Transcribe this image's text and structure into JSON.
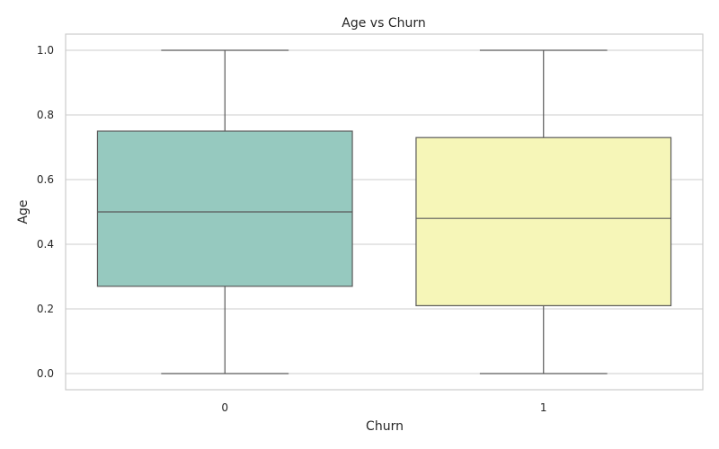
{
  "chart_data": {
    "type": "box",
    "title": "Age vs Churn",
    "xlabel": "Churn",
    "ylabel": "Age",
    "categories": [
      "0",
      "1"
    ],
    "ylim": [
      -0.05,
      1.05
    ],
    "yticks": [
      0.0,
      0.2,
      0.4,
      0.6,
      0.8,
      1.0
    ],
    "ytick_labels": [
      "0.0",
      "0.2",
      "0.4",
      "0.6",
      "0.8",
      "1.0"
    ],
    "grid": true,
    "boxes": [
      {
        "category": "0",
        "min": 0.0,
        "q1": 0.27,
        "median": 0.5,
        "q3": 0.75,
        "max": 1.0,
        "color": "#96c9bf"
      },
      {
        "category": "1",
        "min": 0.0,
        "q1": 0.21,
        "median": 0.48,
        "q3": 0.73,
        "max": 1.0,
        "color": "#f6f6b8"
      }
    ]
  }
}
